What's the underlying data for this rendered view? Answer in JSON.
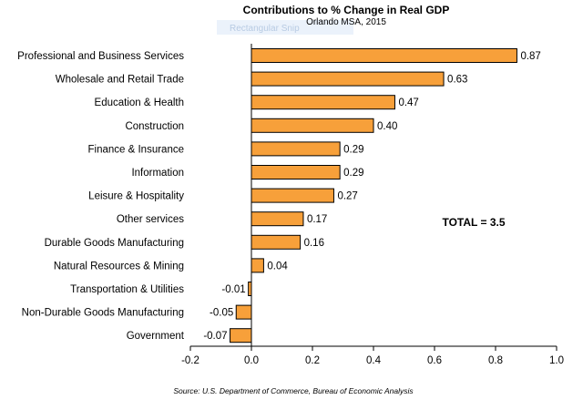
{
  "chart_data": {
    "type": "bar",
    "orientation": "horizontal",
    "title": "Contributions to % Change in Real GDP",
    "subtitle": "Orlando MSA, 2015",
    "categories": [
      "Professional and Business Services",
      "Wholesale and Retail Trade",
      "Education & Health",
      "Construction",
      "Finance & Insurance",
      "Information",
      "Leisure & Hospitality",
      "Other services",
      "Durable Goods Manufacturing",
      "Natural Resources & Mining",
      "Transportation & Utilities",
      "Non-Durable Goods Manufacturing",
      "Government"
    ],
    "values": [
      0.87,
      0.63,
      0.47,
      0.4,
      0.29,
      0.29,
      0.27,
      0.17,
      0.16,
      0.04,
      -0.01,
      -0.05,
      -0.07
    ],
    "value_labels": [
      "0.87",
      "0.63",
      "0.47",
      "0.40",
      "0.29",
      "0.29",
      "0.27",
      "0.17",
      "0.16",
      "0.04",
      "-0.01",
      "-0.05",
      "-0.07"
    ],
    "xlim": [
      -0.2,
      1.0
    ],
    "xticks": [
      "-0.2",
      "0.0",
      "0.2",
      "0.4",
      "0.6",
      "0.8",
      "1.0"
    ],
    "xtick_values": [
      -0.2,
      0.0,
      0.2,
      0.4,
      0.6,
      0.8,
      1.0
    ],
    "grid": false,
    "bar_color": "#f7a03a",
    "bar_edge_color": "#000000",
    "annotation": "TOTAL = 3.5",
    "source": "Source: U.S. Department of Commerce, Bureau of Economic Analysis",
    "overlay_text": "Rectangular Snip"
  }
}
